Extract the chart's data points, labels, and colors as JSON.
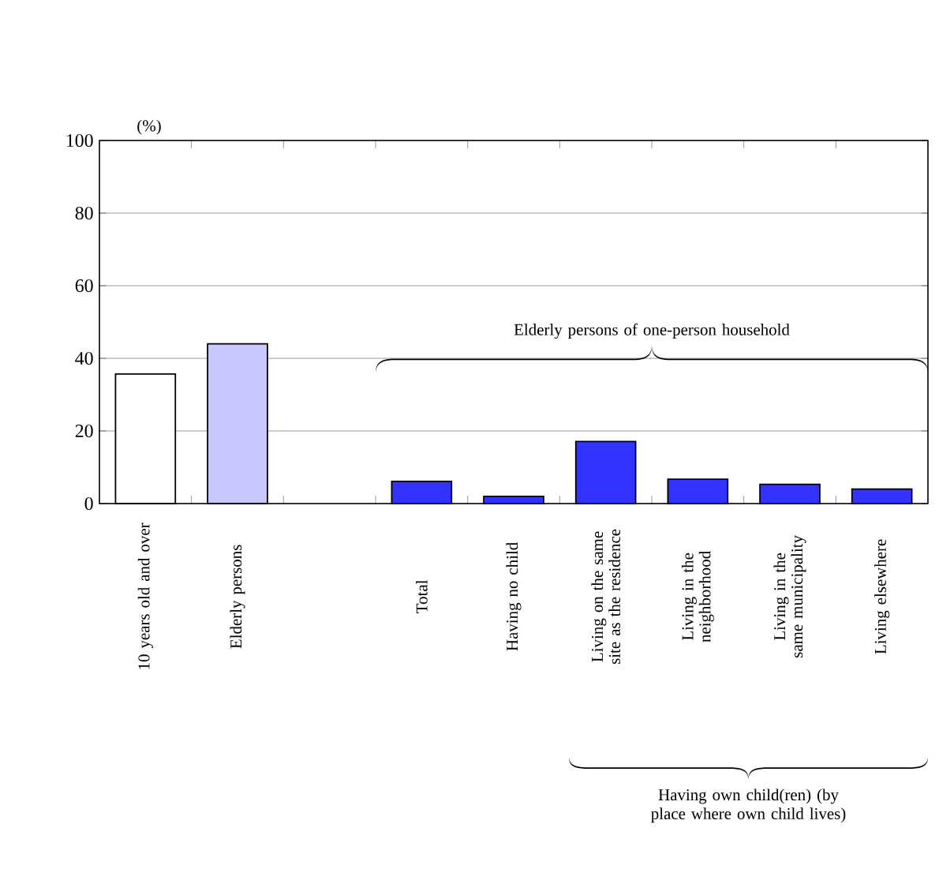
{
  "chart_data": {
    "type": "bar",
    "ylabel": "(%)",
    "categories": [
      "10 years old and over",
      "Elderly persons",
      null,
      "Total",
      "Having no child",
      "Living on the same site as the residence",
      "Living in the neighborhood",
      "Living in the same municipality",
      "Living elsewhere"
    ],
    "values": [
      35.7,
      44.0,
      null,
      6.1,
      2.0,
      17.1,
      6.7,
      5.3,
      4.0
    ],
    "colors": [
      "#ffffff",
      "#c8c8ff",
      null,
      "#3333ff",
      "#3333ff",
      "#3333ff",
      "#3333ff",
      "#3333ff",
      "#3333ff"
    ],
    "ylim": [
      0,
      100
    ],
    "yticks": [
      0,
      20,
      40,
      60,
      80,
      100
    ],
    "grid": "y",
    "annotations": [
      "Elderly persons of one-person household",
      "Having own child(ren) (by place where own child lives)"
    ]
  }
}
